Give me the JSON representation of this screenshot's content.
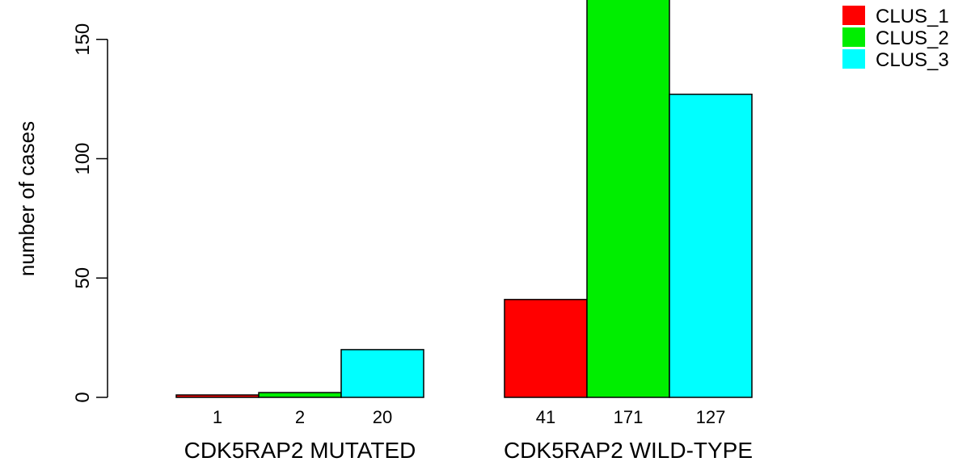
{
  "chart_data": {
    "type": "bar",
    "mode": "grouped",
    "categories": [
      "CDK5RAP2 MUTATED",
      "CDK5RAP2 WILD-TYPE"
    ],
    "series": [
      {
        "name": "CLUS_1",
        "values": [
          1,
          41
        ],
        "color": "#ff0000"
      },
      {
        "name": "CLUS_2",
        "values": [
          2,
          171
        ],
        "color": "#00ee00"
      },
      {
        "name": "CLUS_3",
        "values": [
          20,
          127
        ],
        "color": "#00ffff"
      }
    ],
    "ylabel": "number of cases",
    "yticks": [
      0,
      50,
      100,
      150
    ],
    "ylim": [
      0,
      171
    ],
    "value_labels_below_bars": true,
    "legend": {
      "position": "top-right",
      "items": [
        "CLUS_1",
        "CLUS_2",
        "CLUS_3"
      ]
    },
    "grid": false
  }
}
